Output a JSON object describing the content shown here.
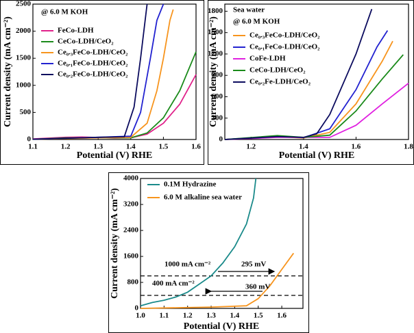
{
  "chart_data": [
    {
      "type": "line",
      "xlabel": "Potential (V) RHE",
      "ylabel": "Current density (mA cm⁻²)",
      "annotations": [
        "@ 6.0 M KOH"
      ],
      "xlim": [
        1.1,
        1.6
      ],
      "xticks": [
        1.1,
        1.2,
        1.3,
        1.4,
        1.5,
        1.6
      ],
      "ylim": [
        0,
        2500
      ],
      "yticks": [
        0,
        500,
        1000,
        1500,
        2000,
        2500
      ],
      "series": [
        {
          "name": "FeCo-LDH",
          "color": "#e0218a",
          "x": [
            1.1,
            1.2,
            1.25,
            1.3,
            1.35,
            1.4,
            1.45,
            1.5,
            1.55,
            1.6
          ],
          "values": [
            10,
            40,
            45,
            35,
            25,
            30,
            100,
            300,
            650,
            1200
          ]
        },
        {
          "name": "CeCo-LDH/CeO₂",
          "color": "#1a8a1a",
          "x": [
            1.1,
            1.2,
            1.3,
            1.4,
            1.45,
            1.5,
            1.55,
            1.6
          ],
          "values": [
            5,
            30,
            30,
            30,
            120,
            400,
            900,
            1620
          ]
        },
        {
          "name": "Ce₀.₃FeCo-LDH/CeO₂",
          "color": "#f7941d",
          "x": [
            1.1,
            1.3,
            1.4,
            1.45,
            1.48,
            1.5,
            1.52,
            1.53
          ],
          "values": [
            5,
            30,
            40,
            300,
            900,
            1500,
            2200,
            2400
          ]
        },
        {
          "name": "Ce₀.₁FeCo-LDH/CeO₂",
          "color": "#2222d0",
          "x": [
            1.1,
            1.3,
            1.4,
            1.43,
            1.46,
            1.48,
            1.5
          ],
          "values": [
            5,
            40,
            60,
            500,
            1500,
            2200,
            2500
          ]
        },
        {
          "name": "Ce₀.₂FeCo-LDH/CeO₂",
          "color": "#0b0b5e",
          "x": [
            1.1,
            1.3,
            1.38,
            1.41,
            1.43,
            1.45
          ],
          "values": [
            5,
            40,
            50,
            600,
            1500,
            2500
          ]
        }
      ]
    },
    {
      "type": "line",
      "xlabel": "Potential (V) RHE",
      "ylabel": "Current density (mA cm⁻²)",
      "annotations": [
        "Sea water",
        "@ 6.0 M KOH"
      ],
      "xlim": [
        1.1,
        1.8
      ],
      "xticks": [
        1.2,
        1.4,
        1.6,
        1.8
      ],
      "ylim": [
        0,
        1900
      ],
      "yticks": [
        0,
        300,
        600,
        900,
        1200,
        1500,
        1800
      ],
      "series": [
        {
          "name": "Ce₀.₃FeCo-LDH/CeO₂",
          "color": "#f7941d",
          "x": [
            1.1,
            1.3,
            1.4,
            1.5,
            1.6,
            1.7,
            1.74
          ],
          "values": [
            0,
            40,
            20,
            100,
            500,
            1100,
            1380
          ]
        },
        {
          "name": "Ce₀.₁FeCo-LDH/CeO₂",
          "color": "#2222d0",
          "x": [
            1.1,
            1.3,
            1.4,
            1.5,
            1.6,
            1.68,
            1.72
          ],
          "values": [
            0,
            45,
            25,
            150,
            700,
            1300,
            1530
          ]
        },
        {
          "name": "CoFe-LDH",
          "color": "#e020e0",
          "x": [
            1.1,
            1.3,
            1.5,
            1.6,
            1.7,
            1.8
          ],
          "values": [
            0,
            30,
            30,
            200,
            500,
            790
          ]
        },
        {
          "name": "CeCo-LDH/CeO₂",
          "color": "#1a8a1a",
          "x": [
            1.1,
            1.3,
            1.4,
            1.5,
            1.6,
            1.7,
            1.78
          ],
          "values": [
            0,
            55,
            30,
            60,
            400,
            850,
            1190
          ]
        },
        {
          "name": "Ce₀.₂Fe-LDH/CeO₂",
          "color": "#0b0b5e",
          "x": [
            1.1,
            1.3,
            1.4,
            1.45,
            1.5,
            1.6,
            1.66
          ],
          "values": [
            0,
            40,
            30,
            80,
            350,
            1200,
            1830
          ]
        }
      ]
    },
    {
      "type": "line",
      "xlabel": "Potential (V) RHE",
      "ylabel": "Current density (mA cm⁻²)",
      "annotations": [
        "1000 mA cm⁻²",
        "295 mV",
        "400 mA cm⁻²",
        "360 mV"
      ],
      "reference_lines": [
        1000,
        400
      ],
      "xlim": [
        1.0,
        1.69
      ],
      "xticks": [
        {
          "value": 1.0,
          "label": "1.0"
        },
        1.1,
        1.2,
        1.3,
        1.4,
        1.5,
        1.6
      ],
      "ylim": [
        0,
        4000
      ],
      "yticks": [
        0,
        800,
        1600,
        2400,
        3200,
        4000
      ],
      "series": [
        {
          "name": "0.1M Hydrazine",
          "color": "#1a8a8a",
          "x": [
            1.0,
            1.05,
            1.1,
            1.15,
            1.2,
            1.25,
            1.3,
            1.35,
            1.4,
            1.45,
            1.48,
            1.49
          ],
          "values": [
            80,
            180,
            250,
            350,
            500,
            750,
            1000,
            1400,
            1900,
            2600,
            3400,
            4000
          ]
        },
        {
          "name": "6.0 M alkaline sea water",
          "color": "#f7941d",
          "x": [
            1.0,
            1.3,
            1.45,
            1.5,
            1.55,
            1.6,
            1.65
          ],
          "values": [
            0,
            40,
            80,
            300,
            700,
            1200,
            1700
          ]
        }
      ]
    }
  ]
}
